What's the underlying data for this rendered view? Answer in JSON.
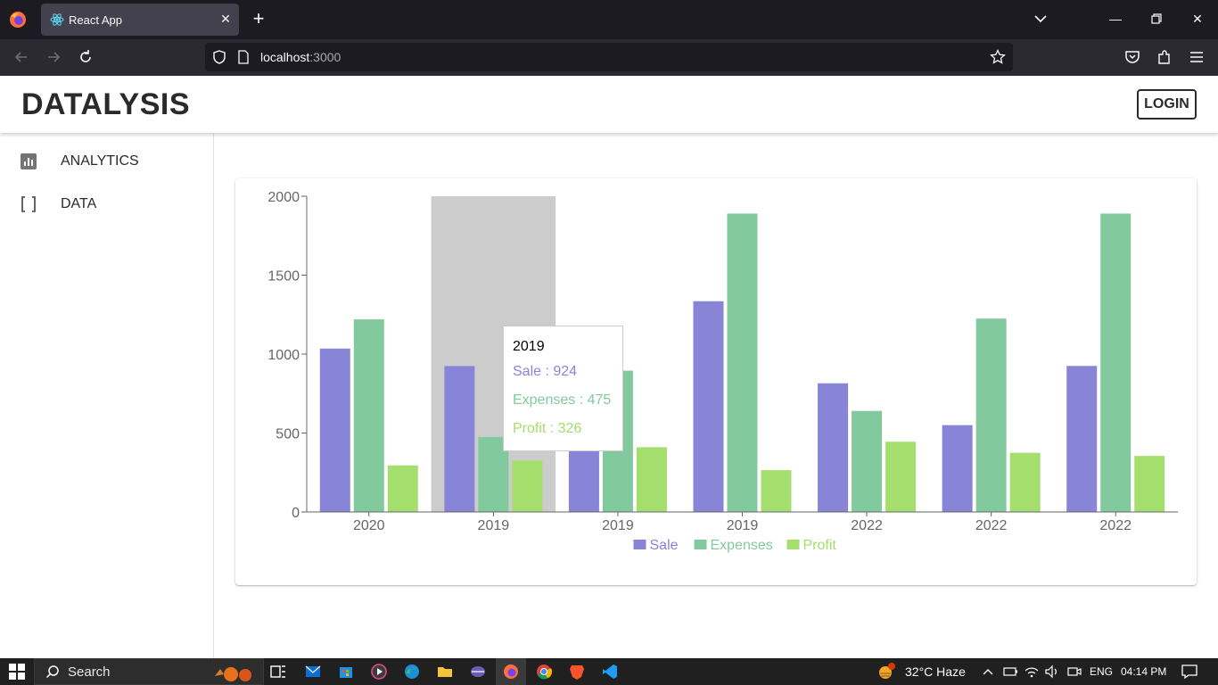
{
  "browser": {
    "tab_title": "React App",
    "url_host": "localhost",
    "url_port": ":3000"
  },
  "app": {
    "brand": "DATALYSIS",
    "login_label": "LOGIN",
    "sidebar": [
      {
        "label": "ANALYTICS",
        "icon": "analytics-icon"
      },
      {
        "label": "DATA",
        "icon": "data-icon"
      }
    ]
  },
  "tooltip": {
    "title": "2019",
    "rows": [
      {
        "label": "Sale : 924",
        "color": "#8884d8"
      },
      {
        "label": "Expenses : 475",
        "color": "#82ca9d"
      },
      {
        "label": "Profit : 326",
        "color": "#a4de6c"
      }
    ]
  },
  "chart_data": {
    "type": "bar",
    "categories": [
      "2020",
      "2019",
      "2019",
      "2019",
      "2022",
      "2022",
      "2022"
    ],
    "series": [
      {
        "name": "Sale",
        "color": "#8884d8",
        "values": [
          1035,
          924,
          535,
          1335,
          815,
          550,
          925
        ]
      },
      {
        "name": "Expenses",
        "color": "#82ca9d",
        "values": [
          1220,
          475,
          895,
          1890,
          640,
          1225,
          1890
        ]
      },
      {
        "name": "Profit",
        "color": "#a4de6c",
        "values": [
          295,
          326,
          410,
          265,
          445,
          375,
          355
        ]
      }
    ],
    "ylim": [
      0,
      2000
    ],
    "yticks": [
      0,
      500,
      1000,
      1500,
      2000
    ],
    "active_index": 1,
    "legend": "bottom",
    "grid": false
  },
  "taskbar": {
    "search_label": "Search",
    "weather": "32°C  Haze",
    "lang": "ENG",
    "time": "04:14 PM"
  }
}
